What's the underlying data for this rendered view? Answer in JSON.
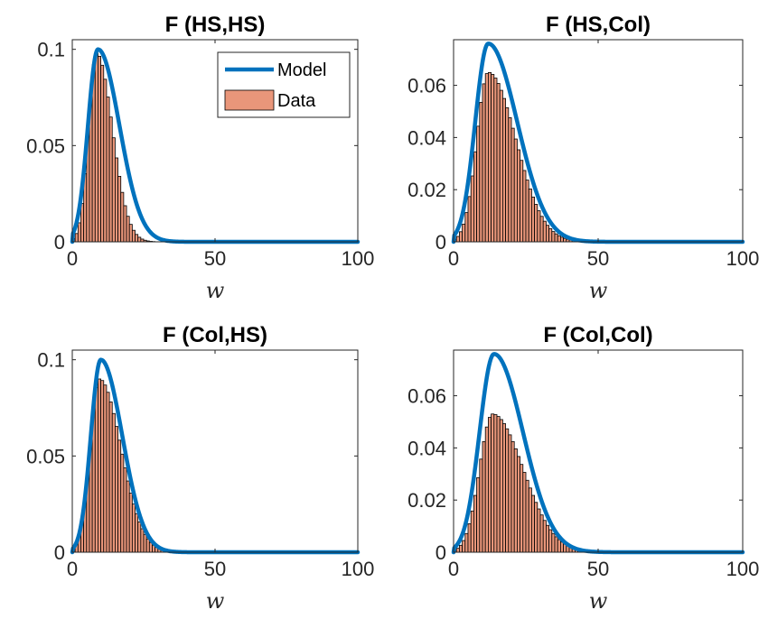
{
  "figure": {
    "colors": {
      "model": "#0072BD",
      "data": "#E9967A",
      "edge": "#000000",
      "axis": "#262626"
    },
    "legend": {
      "placement": "top-right",
      "panel": 0,
      "items": [
        "Model",
        "Data"
      ]
    }
  },
  "chart_data": [
    {
      "type": "bar",
      "title": "F (HS,HS)",
      "xlabel": "w",
      "xlim": [
        0,
        100
      ],
      "ylim": [
        0,
        0.105
      ],
      "xticks": [
        0,
        50,
        100
      ],
      "yticks": [
        0,
        0.05,
        0.1
      ],
      "ytick_labels": [
        "0",
        "0.05",
        "0.1"
      ],
      "series": [
        {
          "name": "Model",
          "type": "line",
          "mode": 9,
          "peak": 0.1,
          "spread_left": 3.5,
          "spread_right": 7.5
        },
        {
          "name": "Data",
          "type": "histogram",
          "bin_width": 1,
          "bin_start": 0,
          "bin_count": 45,
          "mode": 8.5,
          "peak": 0.098,
          "spread_left": 2.8,
          "spread_right": 5.5
        }
      ]
    },
    {
      "type": "bar",
      "title": "F (HS,Col)",
      "xlabel": "w",
      "xlim": [
        0,
        100
      ],
      "ylim": [
        0,
        0.0775
      ],
      "xticks": [
        0,
        50,
        100
      ],
      "yticks": [
        0,
        0.02,
        0.04,
        0.06
      ],
      "ytick_labels": [
        "0",
        "0.02",
        "0.04",
        "0.06"
      ],
      "series": [
        {
          "name": "Model",
          "type": "line",
          "mode": 12,
          "peak": 0.076,
          "spread_left": 4.5,
          "spread_right": 10
        },
        {
          "name": "Data",
          "type": "histogram",
          "bin_width": 1,
          "bin_start": 0,
          "bin_count": 85,
          "mode": 12,
          "peak": 0.065,
          "spread_left": 4,
          "spread_right": 9.5
        }
      ]
    },
    {
      "type": "bar",
      "title": "F (Col,HS)",
      "xlabel": "w",
      "xlim": [
        0,
        100
      ],
      "ylim": [
        0,
        0.105
      ],
      "xticks": [
        0,
        50,
        100
      ],
      "yticks": [
        0,
        0.05,
        0.1
      ],
      "ytick_labels": [
        "0",
        "0.05",
        "0.1"
      ],
      "series": [
        {
          "name": "Model",
          "type": "line",
          "mode": 10,
          "peak": 0.1,
          "spread_left": 3.5,
          "spread_right": 7.5
        },
        {
          "name": "Data",
          "type": "histogram",
          "bin_width": 1,
          "bin_start": 0,
          "bin_count": 66,
          "mode": 9.5,
          "peak": 0.09,
          "spread_left": 3.2,
          "spread_right": 7.5
        }
      ]
    },
    {
      "type": "bar",
      "title": "F (Col,Col)",
      "xlabel": "w",
      "xlim": [
        0,
        100
      ],
      "ylim": [
        0,
        0.0775
      ],
      "xticks": [
        0,
        50,
        100
      ],
      "yticks": [
        0,
        0.02,
        0.04,
        0.06
      ],
      "ytick_labels": [
        "0",
        "0.02",
        "0.04",
        "0.06"
      ],
      "series": [
        {
          "name": "Model",
          "type": "line",
          "mode": 14,
          "peak": 0.076,
          "spread_left": 5,
          "spread_right": 10
        },
        {
          "name": "Data",
          "type": "histogram",
          "bin_width": 1,
          "bin_start": 0,
          "bin_count": 97,
          "mode": 13.5,
          "peak": 0.053,
          "spread_left": 4.5,
          "spread_right": 10.5
        }
      ]
    }
  ]
}
